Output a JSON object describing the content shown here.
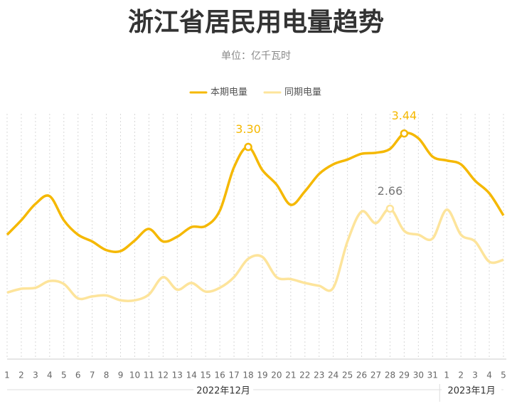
{
  "chart_data": {
    "type": "line",
    "title": "浙江省居民用电量趋势",
    "subtitle": "单位：亿千瓦时",
    "categories": [
      "1",
      "2",
      "3",
      "4",
      "5",
      "6",
      "7",
      "8",
      "9",
      "10",
      "11",
      "12",
      "13",
      "14",
      "15",
      "16",
      "17",
      "18",
      "19",
      "20",
      "21",
      "22",
      "23",
      "24",
      "25",
      "26",
      "27",
      "28",
      "29",
      "30",
      "31",
      "1",
      "2",
      "3",
      "4",
      "5"
    ],
    "x_group_labels": [
      "2022年12月",
      "2023年1月"
    ],
    "ylim": [
      1.1,
      3.6
    ],
    "grid": true,
    "legend": "top",
    "series": [
      {
        "name": "本期电量",
        "color": "#f5b800",
        "values": [
          2.39,
          2.54,
          2.71,
          2.79,
          2.54,
          2.39,
          2.32,
          2.23,
          2.22,
          2.33,
          2.45,
          2.32,
          2.37,
          2.47,
          2.48,
          2.64,
          3.09,
          3.3,
          3.06,
          2.91,
          2.7,
          2.84,
          3.02,
          3.12,
          3.17,
          3.23,
          3.24,
          3.28,
          3.44,
          3.39,
          3.2,
          3.16,
          3.12,
          2.95,
          2.82,
          2.59
        ],
        "value_labels": [
          null,
          null,
          null,
          null,
          null,
          null,
          null,
          null,
          null,
          null,
          null,
          null,
          null,
          null,
          null,
          null,
          null,
          "3.30",
          null,
          null,
          null,
          null,
          null,
          null,
          null,
          null,
          null,
          null,
          "3.44",
          null,
          null,
          null,
          null,
          null,
          null,
          null
        ]
      },
      {
        "name": "同期电量",
        "color": "#fde49b",
        "values": [
          1.79,
          1.83,
          1.84,
          1.91,
          1.88,
          1.73,
          1.75,
          1.76,
          1.71,
          1.71,
          1.77,
          1.95,
          1.82,
          1.89,
          1.8,
          1.84,
          1.95,
          2.14,
          2.16,
          1.95,
          1.93,
          1.89,
          1.86,
          1.84,
          2.32,
          2.63,
          2.51,
          2.66,
          2.43,
          2.39,
          2.35,
          2.65,
          2.39,
          2.32,
          2.11,
          2.13
        ],
        "value_labels": [
          null,
          null,
          null,
          null,
          null,
          null,
          null,
          null,
          null,
          null,
          null,
          null,
          null,
          null,
          null,
          null,
          null,
          null,
          null,
          null,
          null,
          null,
          null,
          null,
          null,
          null,
          null,
          "2.66",
          null,
          null,
          null,
          null,
          null,
          null,
          null,
          null
        ]
      }
    ]
  }
}
